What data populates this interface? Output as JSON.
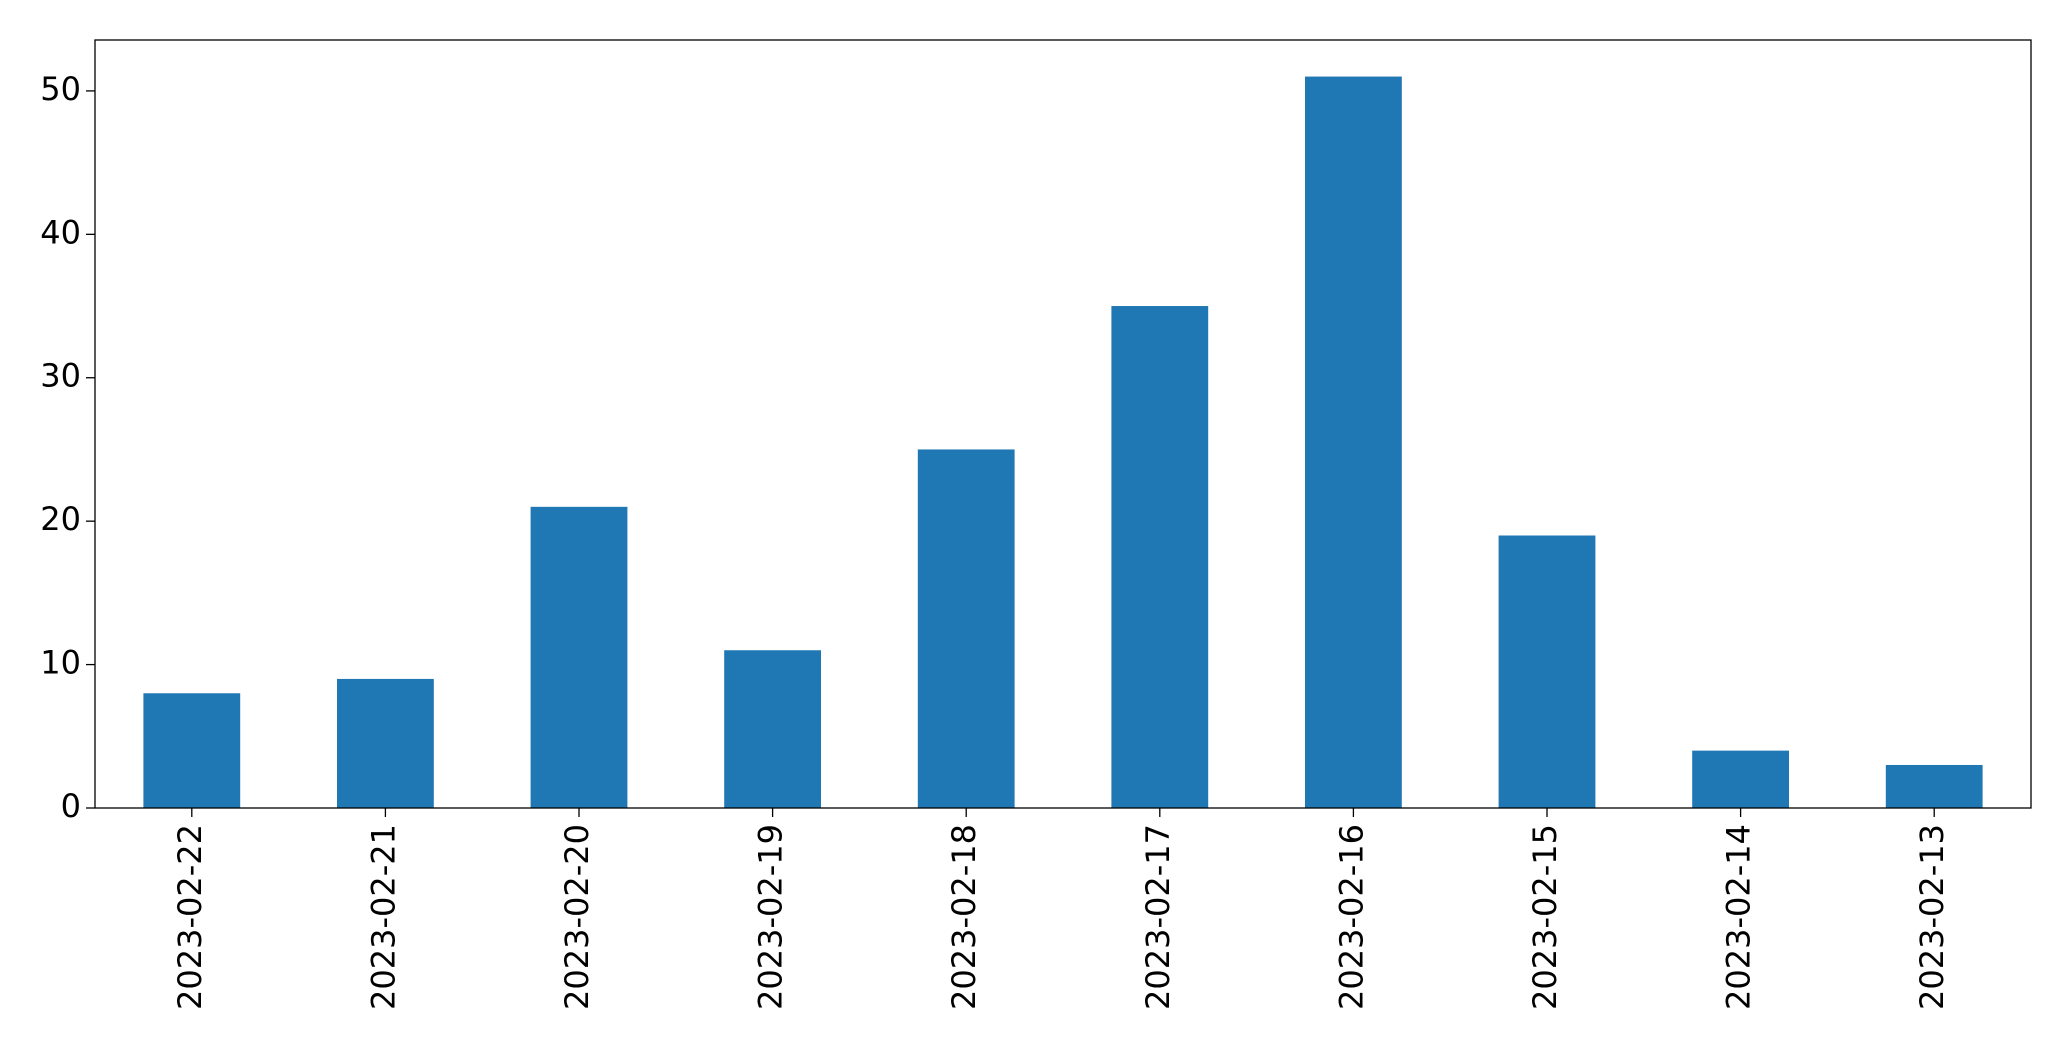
{
  "chart_data": {
    "type": "bar",
    "categories": [
      "2023-02-22",
      "2023-02-21",
      "2023-02-20",
      "2023-02-19",
      "2023-02-18",
      "2023-02-17",
      "2023-02-16",
      "2023-02-15",
      "2023-02-14",
      "2023-02-13"
    ],
    "values": [
      8,
      9,
      21,
      11,
      25,
      35,
      51,
      19,
      4,
      3
    ],
    "color": "#1f77b4",
    "ylim": [
      0,
      53.55
    ],
    "yticks": [
      0,
      10,
      20,
      30,
      40,
      50
    ],
    "grid": false
  }
}
